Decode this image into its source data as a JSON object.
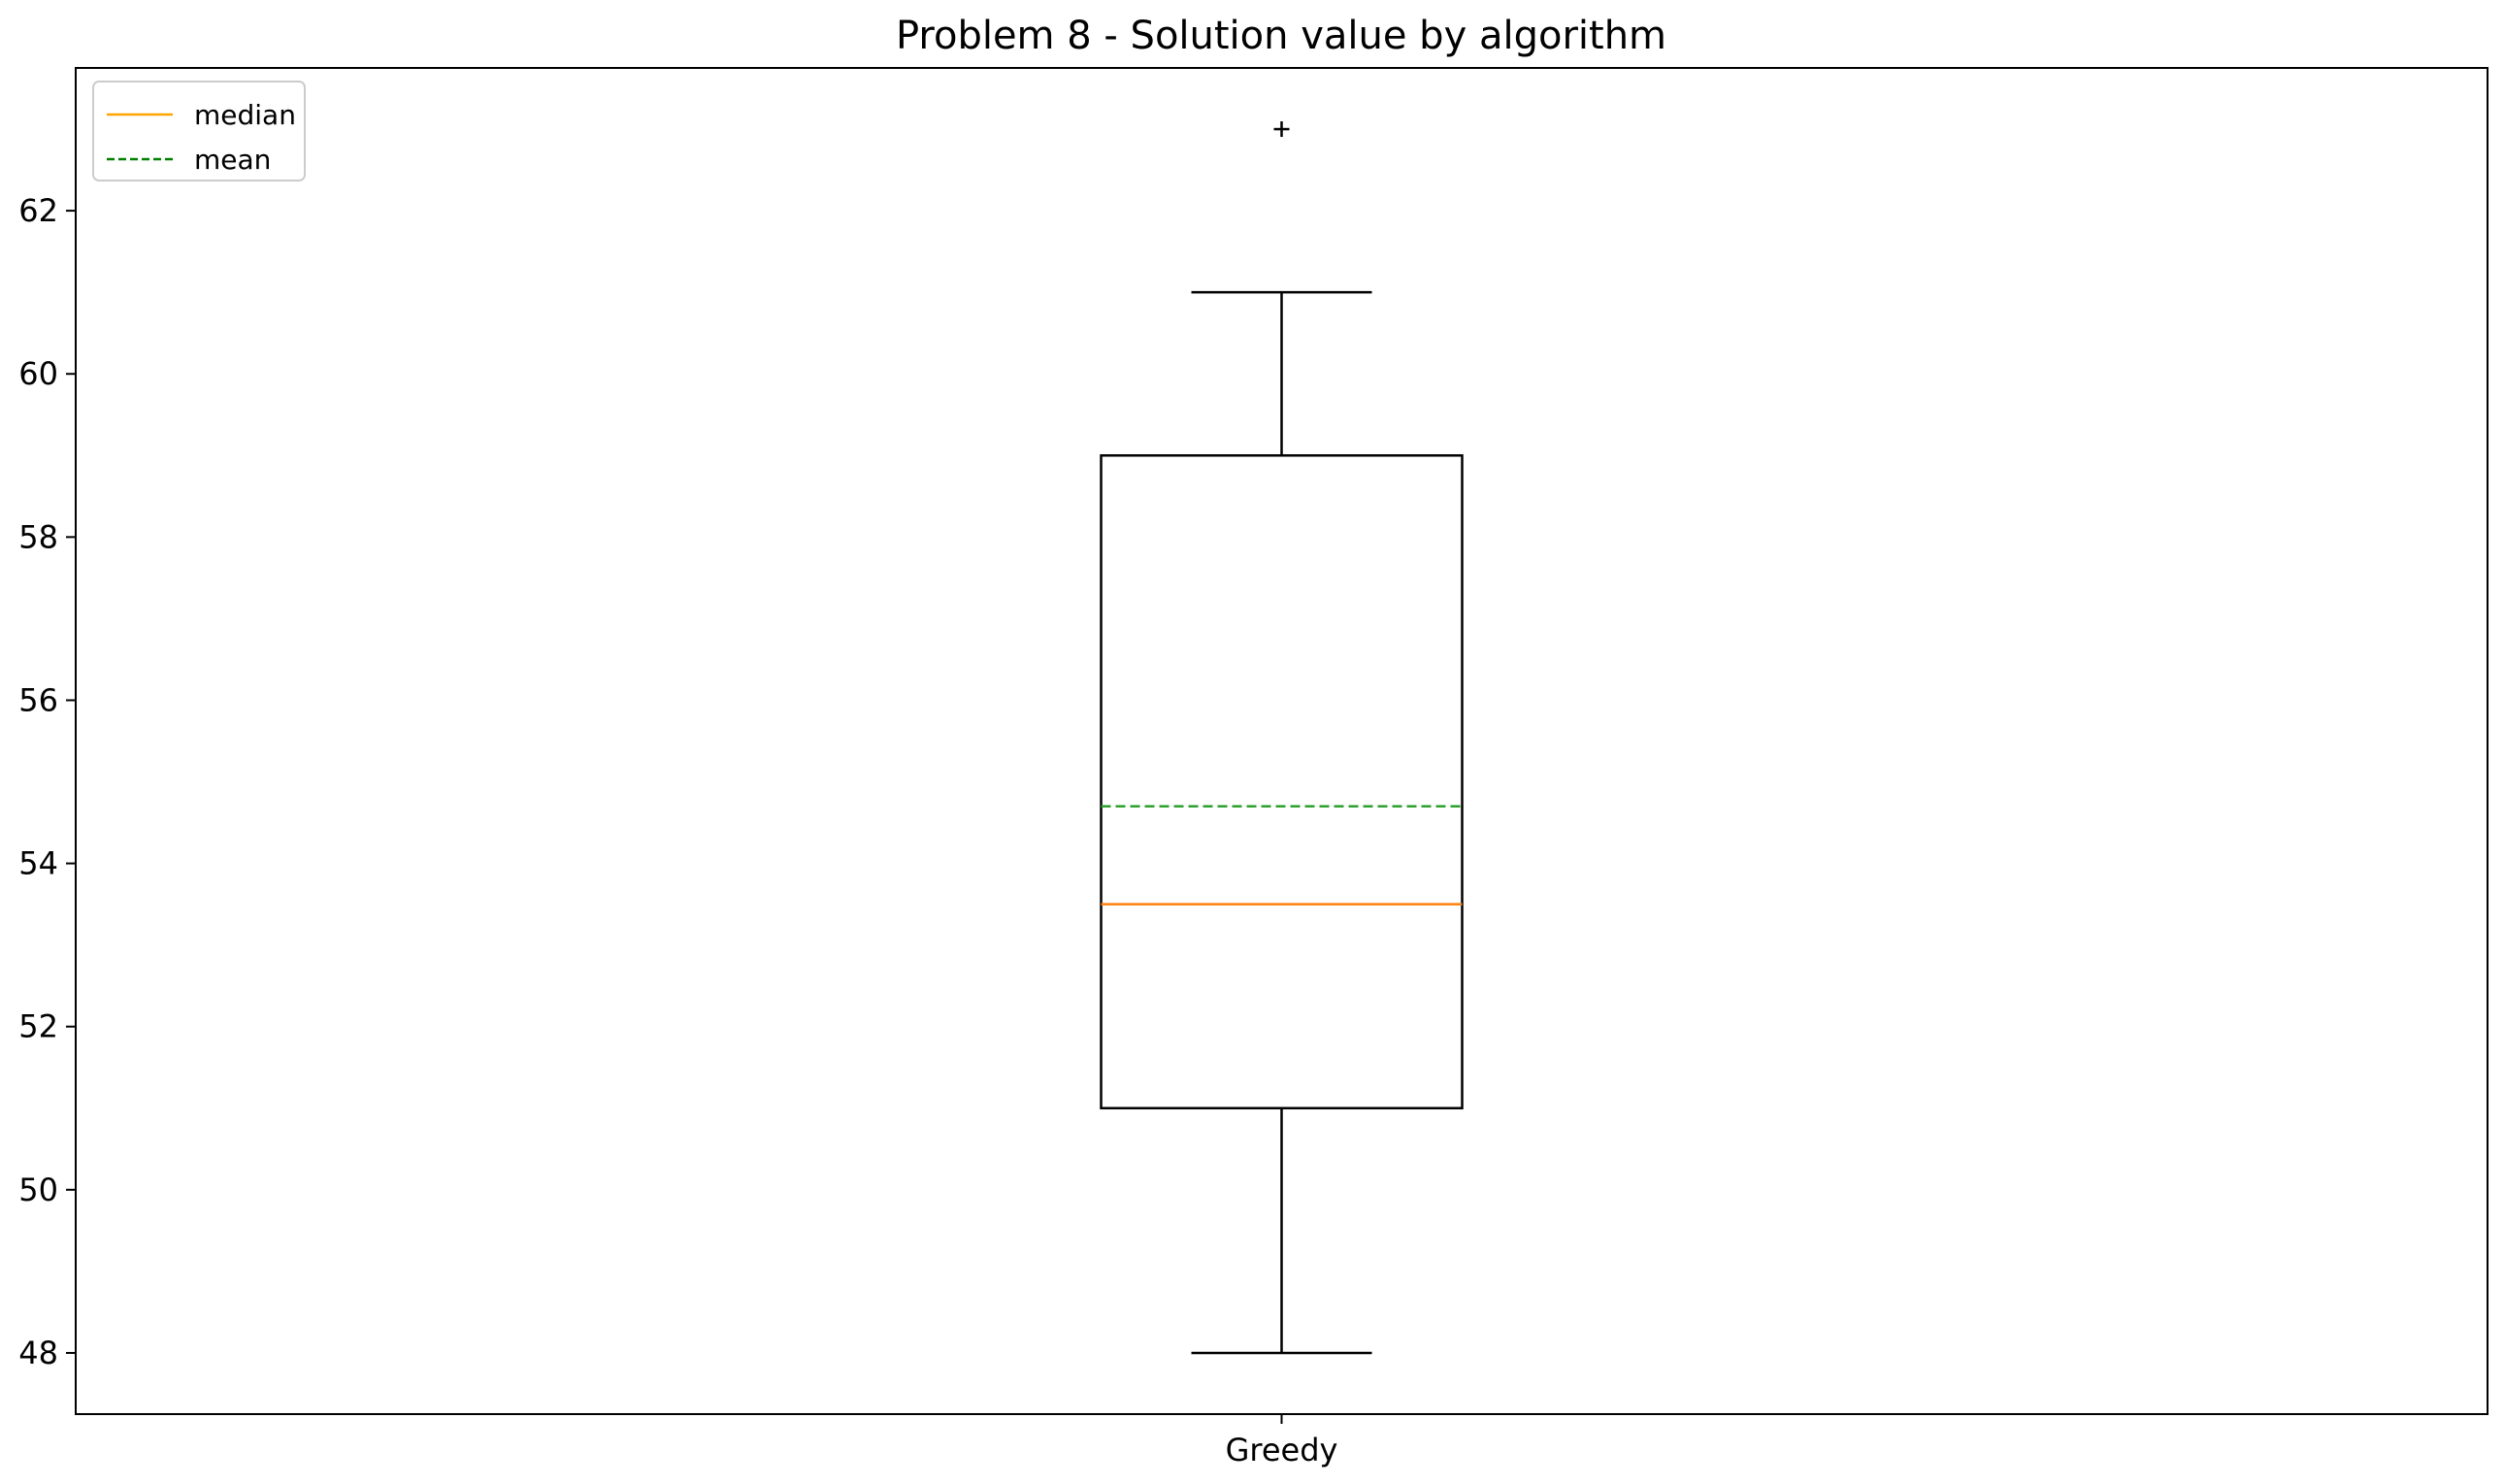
{
  "chart_data": {
    "type": "box",
    "title": "Problem 8 - Solution value by algorithm",
    "xlabel": "",
    "ylabel": "",
    "categories": [
      "Greedy"
    ],
    "ylim": [
      47.25,
      63.75
    ],
    "yticks": [
      48,
      50,
      52,
      54,
      56,
      58,
      60,
      62
    ],
    "grid": false,
    "legend": {
      "placement": "top-left",
      "entries": [
        {
          "label": "median",
          "color": "#ffa500",
          "style": "solid"
        },
        {
          "label": "mean",
          "color": "#008000",
          "style": "dashed"
        }
      ]
    },
    "boxes": [
      {
        "name": "Greedy",
        "whisker_low": 48,
        "q1": 51,
        "median": 53.5,
        "mean": 54.7,
        "q3": 59,
        "whisker_high": 61,
        "outliers": [
          63
        ]
      }
    ],
    "colors": {
      "box": "#000000",
      "median_line": "#ff7f0e",
      "mean_line": "#2ca02c"
    }
  }
}
